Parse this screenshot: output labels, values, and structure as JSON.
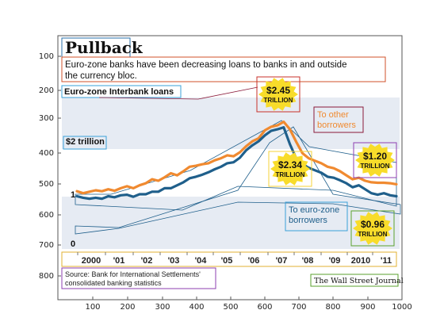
{
  "chart_data": {
    "type": "line",
    "title": "Pullback",
    "subtitle_lines": [
      "Euro-zone banks have been decreasing loans to banks in and outside",
      "the currency bloc."
    ],
    "section_label": "Euro-zone Interbank loans",
    "source_lines": [
      "Source: Bank for International Settlements'",
      "consolidated banking statistics"
    ],
    "credit": "The Wall Street Journal",
    "x_ticks": [
      "100",
      "200",
      "300",
      "400",
      "500",
      "600",
      "700",
      "800",
      "900",
      "1000"
    ],
    "y_ticks": [
      "100",
      "200",
      "300",
      "400",
      "500",
      "600",
      "700",
      "800"
    ],
    "year_labels": [
      "2000",
      "'01",
      "'02",
      "'03",
      "'04",
      "'05",
      "'06",
      "'07",
      "'08",
      "'09",
      "2010",
      "'11"
    ],
    "value_labels": [
      {
        "text": "$2 trillion",
        "value": 2
      },
      {
        "text": "1",
        "value": 1
      },
      {
        "text": "0",
        "value": 0
      }
    ],
    "callouts": [
      {
        "name": "peak-other",
        "lines": [
          "$2.45",
          "TRILLION"
        ]
      },
      {
        "name": "peak-euro",
        "lines": [
          "$2.34",
          "TRILLION"
        ]
      },
      {
        "name": "end-other",
        "lines": [
          "$1.20",
          "TRILLION"
        ]
      },
      {
        "name": "end-euro",
        "lines": [
          "$0.96",
          "TRILLION"
        ]
      }
    ],
    "series": [
      {
        "name": "To other borrowers",
        "color": "#f08a30",
        "values": [
          1.06,
          1.02,
          1.05,
          1.08,
          1.06,
          1.1,
          1.07,
          1.12,
          1.16,
          1.12,
          1.18,
          1.22,
          1.3,
          1.27,
          1.34,
          1.42,
          1.38,
          1.46,
          1.55,
          1.57,
          1.6,
          1.62,
          1.68,
          1.72,
          1.78,
          1.76,
          1.84,
          1.96,
          2.06,
          2.12,
          2.28,
          2.35,
          2.38,
          2.45,
          2.3,
          2.05,
          1.82,
          1.72,
          1.67,
          1.62,
          1.55,
          1.52,
          1.46,
          1.38,
          1.3,
          1.33,
          1.27,
          1.24,
          1.23,
          1.23,
          1.22,
          1.2
        ]
      },
      {
        "name": "To euro-zone borrowers",
        "color": "#1f5f8b",
        "values": [
          0.96,
          0.93,
          0.91,
          0.93,
          0.91,
          0.96,
          0.94,
          0.98,
          0.99,
          0.95,
          1.0,
          1.0,
          1.05,
          1.05,
          1.12,
          1.12,
          1.18,
          1.24,
          1.32,
          1.35,
          1.39,
          1.44,
          1.5,
          1.55,
          1.62,
          1.64,
          1.73,
          1.88,
          1.98,
          2.06,
          2.18,
          2.27,
          2.3,
          2.34,
          2.0,
          1.72,
          1.6,
          1.53,
          1.48,
          1.43,
          1.35,
          1.33,
          1.28,
          1.22,
          1.14,
          1.18,
          1.1,
          1.02,
          0.99,
          1.02,
          0.98,
          0.96
        ]
      }
    ]
  }
}
